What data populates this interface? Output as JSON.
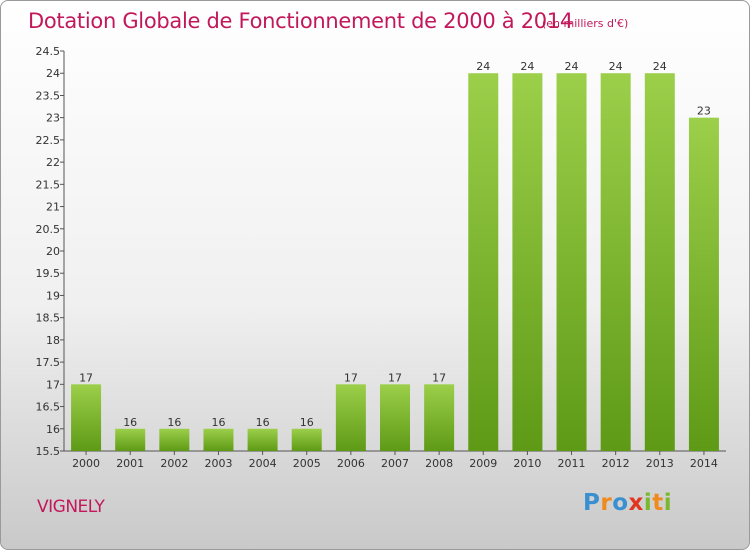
{
  "header": {
    "title": "Dotation Globale de Fonctionnement de 2000 à 2014",
    "unit": "(en milliers d'€)"
  },
  "footer": {
    "commune": "VIGNELY",
    "logo": "Proxiti"
  },
  "colors": {
    "bar_light": "#9ccf4a",
    "bar_dark": "#5e9a16",
    "title": "#c2185b"
  },
  "chart_data": {
    "type": "bar",
    "title": "Dotation Globale de Fonctionnement de 2000 à 2014",
    "subtitle": "(en milliers d'€)",
    "xlabel": "",
    "ylabel": "",
    "ylim": [
      15.5,
      24.5
    ],
    "yticks": [
      15.5,
      16,
      16.5,
      17,
      17.5,
      18,
      18.5,
      19,
      19.5,
      20,
      20.5,
      21,
      21.5,
      22,
      22.5,
      23,
      23.5,
      24,
      24.5
    ],
    "grid": false,
    "categories": [
      "2000",
      "2001",
      "2002",
      "2003",
      "2004",
      "2005",
      "2006",
      "2007",
      "2008",
      "2009",
      "2010",
      "2011",
      "2012",
      "2013",
      "2014"
    ],
    "values": [
      17,
      16,
      16,
      16,
      16,
      16,
      17,
      17,
      17,
      24,
      24,
      24,
      24,
      24,
      23
    ],
    "data_labels": [
      "17",
      "16",
      "16",
      "16",
      "16",
      "16",
      "17",
      "17",
      "17",
      "24",
      "24",
      "24",
      "24",
      "24",
      "23"
    ]
  }
}
